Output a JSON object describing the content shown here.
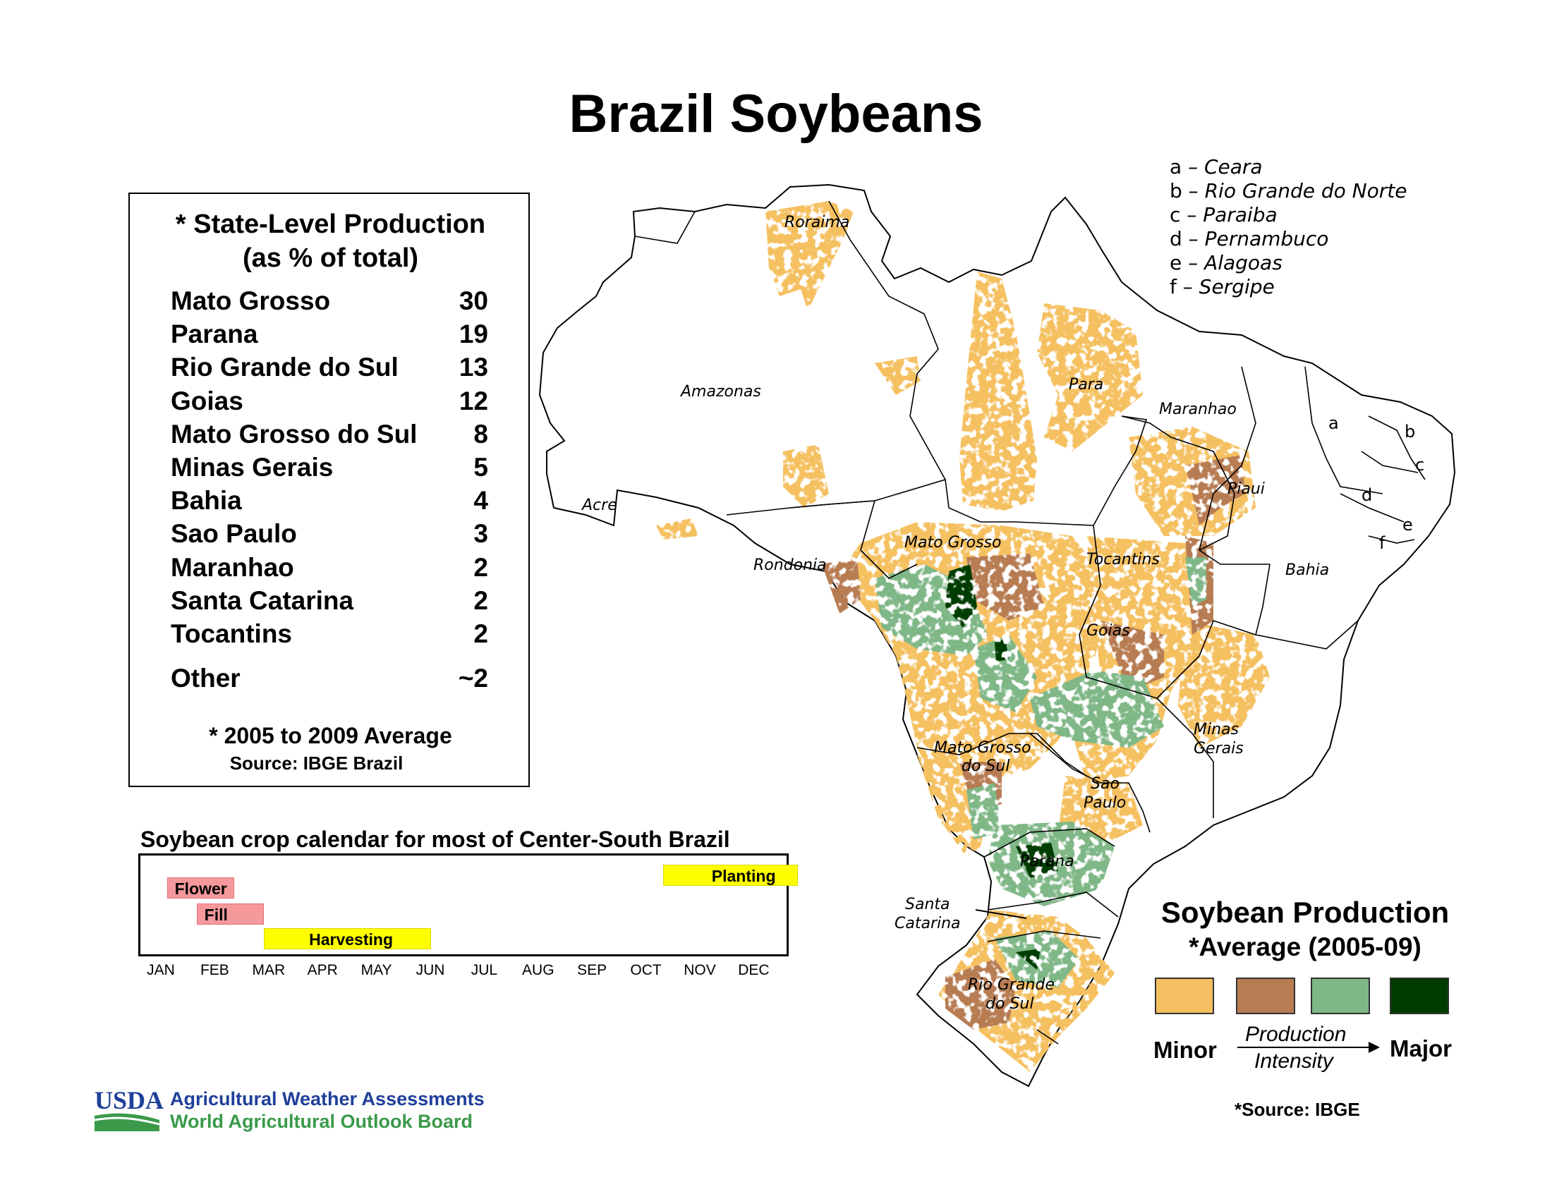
{
  "title": "Brazil Soybeans",
  "production_table": {
    "heading_line1": "* State-Level Production",
    "heading_line2": "(as % of total)",
    "rows": [
      {
        "state": "Mato Grosso",
        "value": "30"
      },
      {
        "state": "Parana",
        "value": "19"
      },
      {
        "state": "Rio Grande do Sul",
        "value": "13"
      },
      {
        "state": "Goias",
        "value": "12"
      },
      {
        "state": "Mato Grosso do Sul",
        "value": "8"
      },
      {
        "state": "Minas Gerais",
        "value": "5"
      },
      {
        "state": "Bahia",
        "value": "4"
      },
      {
        "state": "Sao Paulo",
        "value": "3"
      },
      {
        "state": "Maranhao",
        "value": "2"
      },
      {
        "state": "Santa Catarina",
        "value": "2"
      },
      {
        "state": "Tocantins",
        "value": "2"
      },
      {
        "state": "Other",
        "value": "~2"
      }
    ],
    "note": "* 2005 to 2009 Average",
    "source": "Source: IBGE Brazil"
  },
  "crop_calendar": {
    "title": "Soybean crop calendar for most of Center-South Brazil",
    "months": [
      "JAN",
      "FEB",
      "MAR",
      "APR",
      "MAY",
      "JUN",
      "JUL",
      "AUG",
      "SEP",
      "OCT",
      "NOV",
      "DEC"
    ],
    "bars": [
      {
        "label": "Flower",
        "start_month": 0.1,
        "end_month": 1.35,
        "row": 1,
        "color": "#f5999c"
      },
      {
        "label": "Fill",
        "start_month": 0.65,
        "end_month": 1.9,
        "row": 2,
        "color": "#f5999c"
      },
      {
        "label": "Harvesting",
        "start_month": 1.9,
        "end_month": 5.0,
        "row": 3,
        "color": "#ffff00"
      },
      {
        "label": "Planting",
        "start_month": 9.3,
        "end_month": 11.8,
        "row": 0,
        "color": "#ffff00"
      }
    ]
  },
  "map": {
    "state_labels": [
      "Roraima",
      "Amazonas",
      "Para",
      "Maranhao",
      "Acre",
      "Rondonia",
      "Mato Grosso",
      "Tocantins",
      "Piaui",
      "Bahia",
      "Goias",
      "Minas",
      "Gerais",
      "Mato Grosso",
      "do Sul",
      "Sao",
      "Paulo",
      "Parana",
      "Santa",
      "Catarina",
      "Rio Grande",
      "do Sul"
    ],
    "small_state_letters": [
      "a",
      "b",
      "c",
      "d",
      "e",
      "f"
    ],
    "key": [
      {
        "letter": "a",
        "state": "Ceara"
      },
      {
        "letter": "b",
        "state": "Rio Grande do Norte"
      },
      {
        "letter": "c",
        "state": "Paraiba"
      },
      {
        "letter": "d",
        "state": "Pernambuco"
      },
      {
        "letter": "e",
        "state": "Alagoas"
      },
      {
        "letter": "f",
        "state": "Sergipe"
      }
    ]
  },
  "legend": {
    "title": "Soybean Production",
    "subtitle": "*Average (2005-09)",
    "colors": [
      "#f5c061",
      "#b87c52",
      "#7fb787",
      "#003c00"
    ],
    "minor_label": "Minor",
    "major_label": "Major",
    "intensity_line1": "Production",
    "intensity_line2": "Intensity",
    "source": "*Source: IBGE"
  },
  "footer": {
    "logo_text": "USDA",
    "line1": "Agricultural Weather Assessments",
    "line2": "World Agricultural Outlook Board"
  }
}
